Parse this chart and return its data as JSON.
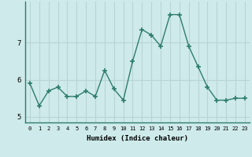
{
  "x": [
    0,
    1,
    2,
    3,
    4,
    5,
    6,
    7,
    8,
    9,
    10,
    11,
    12,
    13,
    14,
    15,
    16,
    17,
    18,
    19,
    20,
    21,
    22,
    23
  ],
  "y": [
    5.9,
    5.3,
    5.7,
    5.8,
    5.55,
    5.55,
    5.7,
    5.55,
    6.25,
    5.75,
    5.45,
    6.5,
    7.35,
    7.2,
    6.9,
    7.75,
    7.75,
    6.9,
    6.35,
    5.8,
    5.45,
    5.45,
    5.5,
    5.5
  ],
  "line_color": "#2e7d6e",
  "marker": "+",
  "marker_size": 4,
  "xlabel": "Humidex (Indice chaleur)",
  "ylim": [
    4.85,
    8.1
  ],
  "yticks": [
    5,
    6,
    7
  ],
  "xticks": [
    0,
    1,
    2,
    3,
    4,
    5,
    6,
    7,
    8,
    9,
    10,
    11,
    12,
    13,
    14,
    15,
    16,
    17,
    18,
    19,
    20,
    21,
    22,
    23
  ],
  "bg_color": "#ceeaea",
  "grid_color": "#b8d4d4"
}
